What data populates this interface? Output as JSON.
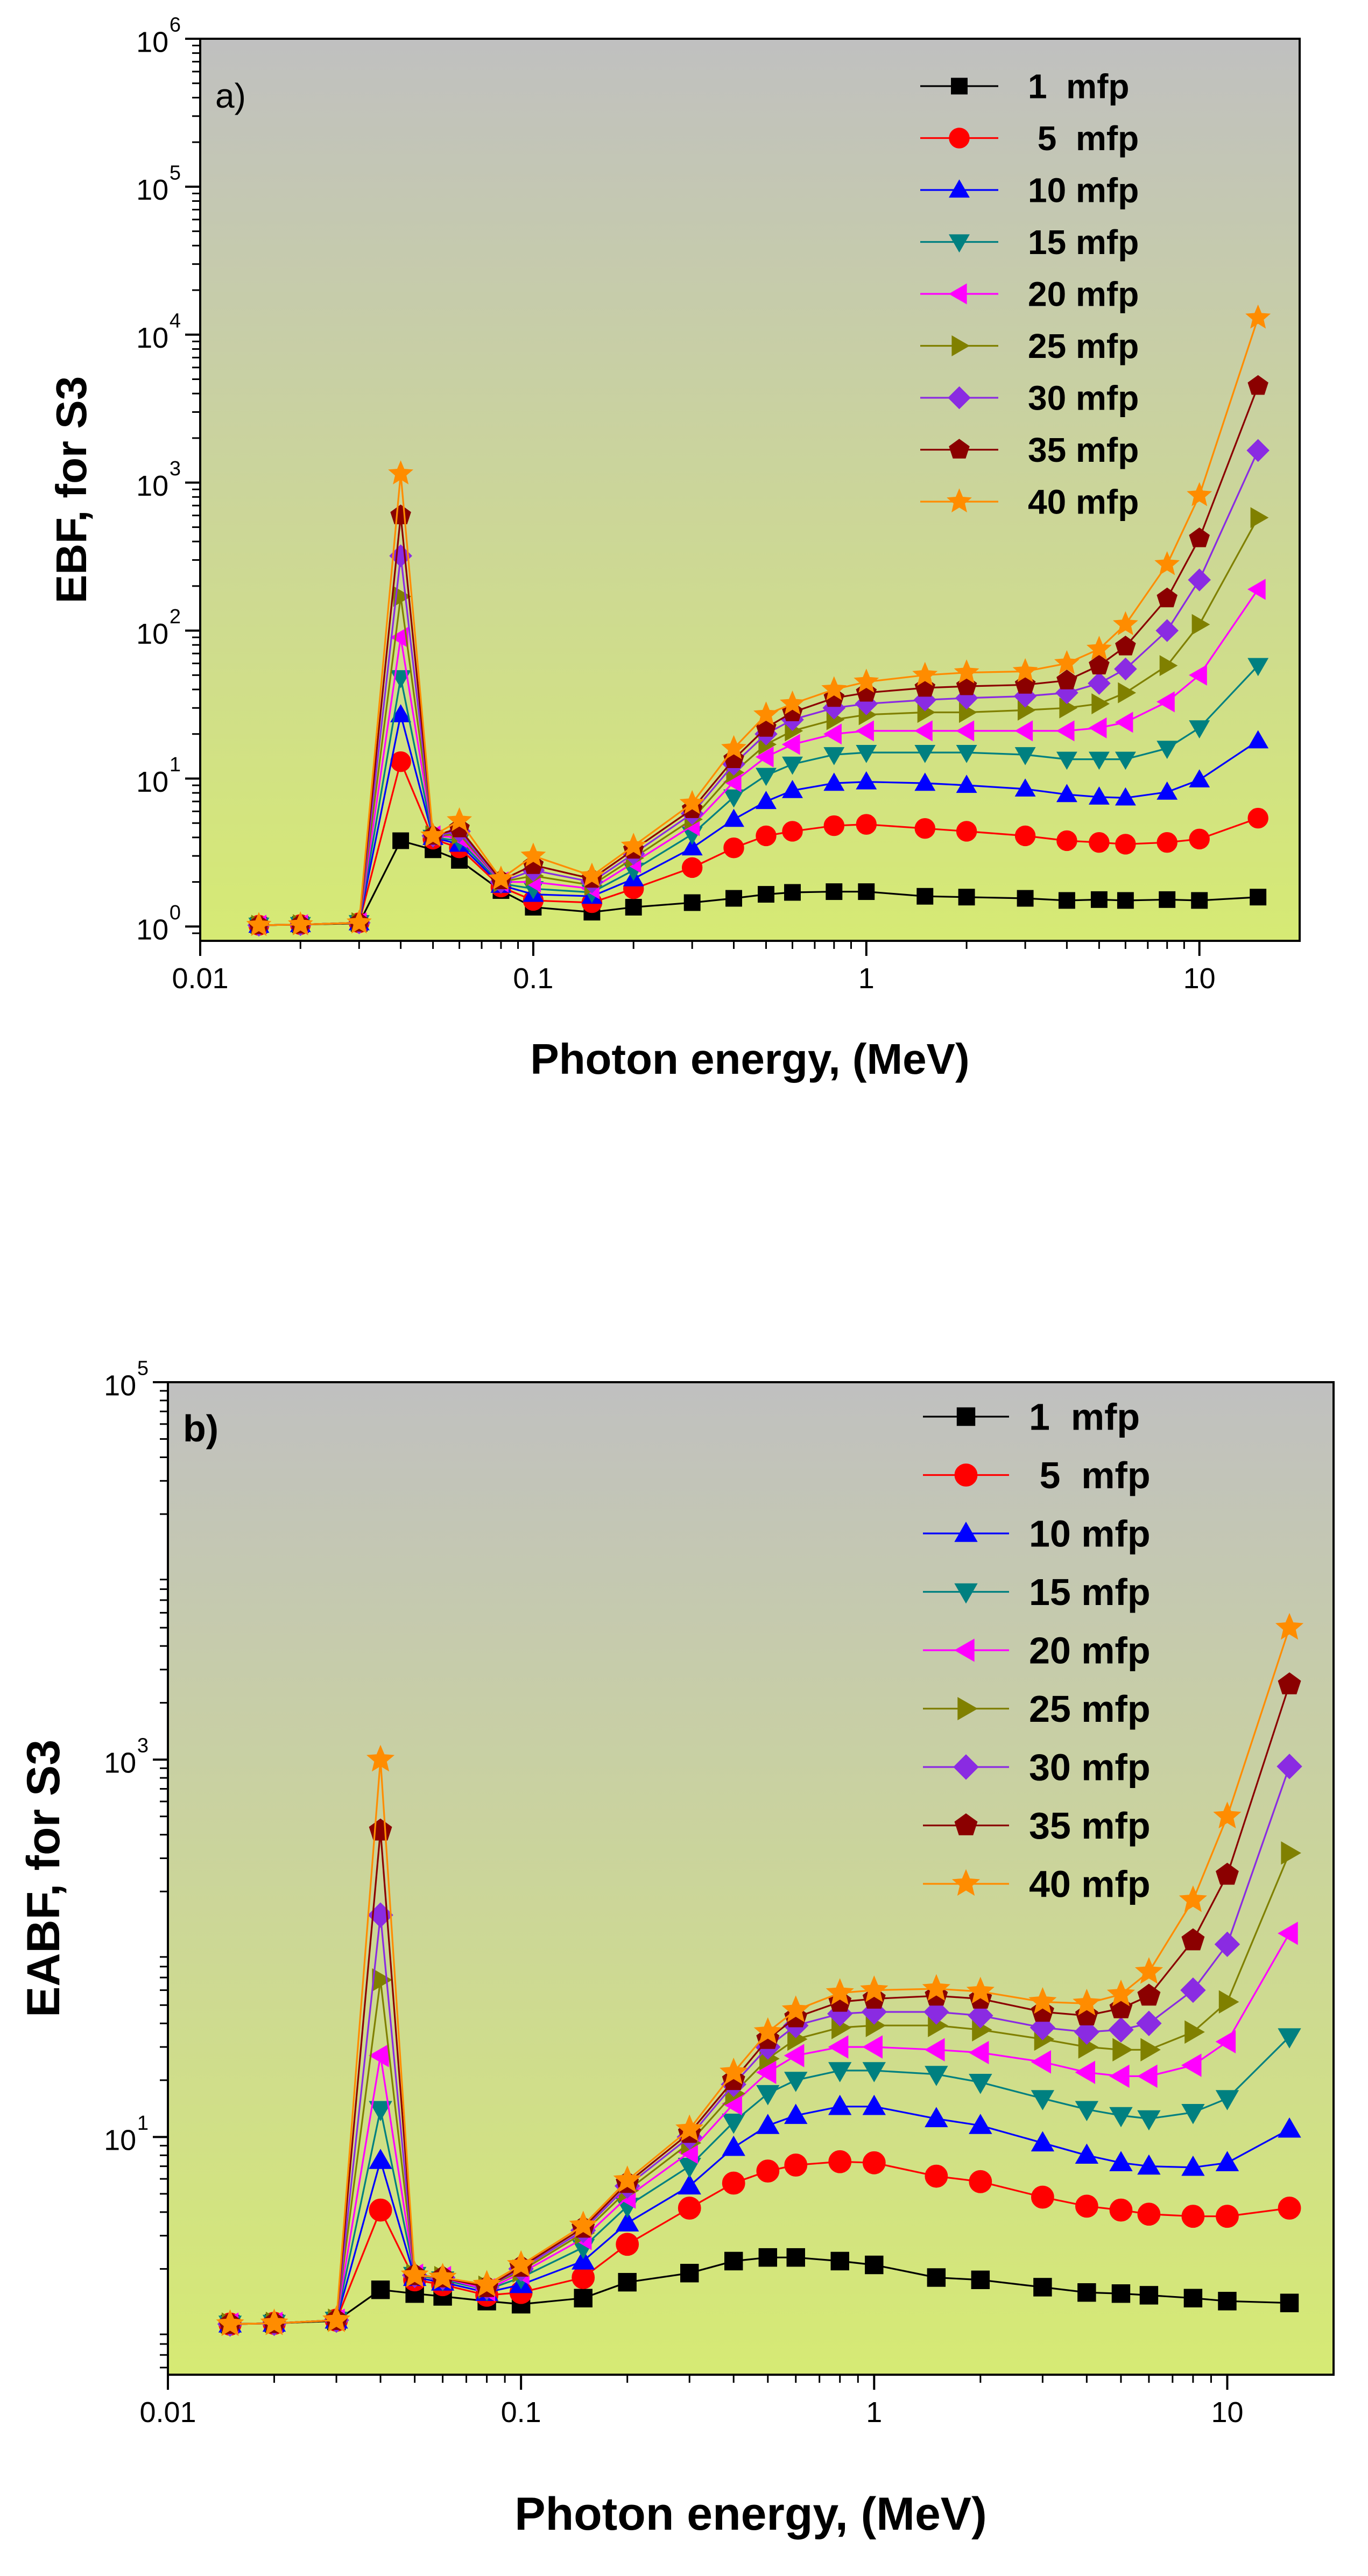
{
  "chart_data": [
    {
      "type": "line",
      "panel_label": "a)",
      "xlabel": "Photon energy, (MeV)",
      "ylabel": "EBF, for S3",
      "xscale": "log",
      "yscale": "log",
      "xlim": [
        0.01,
        20
      ],
      "ylim": [
        0.8,
        1000000
      ],
      "x_ticks": [
        {
          "value": 0.01,
          "label": "0.01"
        },
        {
          "value": 0.1,
          "label": "0.1"
        },
        {
          "value": 1,
          "label": "1"
        },
        {
          "value": 10,
          "label": "10"
        }
      ],
      "y_ticks": [
        {
          "value": 1,
          "base": "10",
          "exp": "0"
        },
        {
          "value": 10,
          "base": "10",
          "exp": "1"
        },
        {
          "value": 100,
          "base": "10",
          "exp": "2"
        },
        {
          "value": 1000,
          "base": "10",
          "exp": "3"
        },
        {
          "value": 10000,
          "base": "10",
          "exp": "4"
        },
        {
          "value": 100000,
          "base": "10",
          "exp": "5"
        },
        {
          "value": 1000000,
          "base": "10",
          "exp": "6"
        }
      ],
      "legend_position": "top-right",
      "x": [
        0.015,
        0.02,
        0.03,
        0.04,
        0.05,
        0.06,
        0.08,
        0.1,
        0.15,
        0.2,
        0.3,
        0.4,
        0.5,
        0.6,
        0.8,
        1,
        1.5,
        2,
        3,
        4,
        5,
        6,
        8,
        10,
        15
      ],
      "series": [
        {
          "name": "1  mfp",
          "color": "#000000",
          "marker": "square",
          "values": [
            1.02,
            1.03,
            1.05,
            3.8,
            3.3,
            2.8,
            1.75,
            1.35,
            1.25,
            1.35,
            1.45,
            1.55,
            1.65,
            1.7,
            1.72,
            1.72,
            1.6,
            1.58,
            1.55,
            1.5,
            1.52,
            1.5,
            1.52,
            1.5,
            1.58
          ]
        },
        {
          "name": " 5  mfp",
          "color": "#ff0000",
          "marker": "circle",
          "values": [
            1.02,
            1.03,
            1.06,
            13,
            3.9,
            3.4,
            1.85,
            1.5,
            1.45,
            1.8,
            2.5,
            3.4,
            4.1,
            4.4,
            4.8,
            4.9,
            4.6,
            4.4,
            4.1,
            3.8,
            3.7,
            3.6,
            3.7,
            3.9,
            5.4
          ]
        },
        {
          "name": "10 mfp",
          "color": "#0000ff",
          "marker": "triangle-up",
          "values": [
            1.02,
            1.03,
            1.06,
            27,
            4.0,
            3.6,
            1.9,
            1.65,
            1.6,
            2.1,
            3.4,
            5.3,
            7.0,
            8.3,
            9.3,
            9.5,
            9.3,
            9.0,
            8.5,
            7.8,
            7.5,
            7.4,
            8.1,
            9.8,
            18
          ]
        },
        {
          "name": "15 mfp",
          "color": "#008080",
          "marker": "triangle-down",
          "values": [
            1.02,
            1.03,
            1.06,
            48,
            4.0,
            3.8,
            1.95,
            1.8,
            1.7,
            2.4,
            4.2,
            7.5,
            10.5,
            12.5,
            14.5,
            15,
            15,
            15,
            14.5,
            13.5,
            13.5,
            13.5,
            16,
            22,
            58
          ]
        },
        {
          "name": "20 mfp",
          "color": "#ff00ff",
          "marker": "triangle-left",
          "values": [
            1.02,
            1.03,
            1.06,
            90,
            4.1,
            4.0,
            2.0,
            2.0,
            1.8,
            2.7,
            4.8,
            9.5,
            14,
            17,
            20,
            21,
            21,
            21,
            21,
            21,
            22,
            24,
            33,
            50,
            190
          ]
        },
        {
          "name": "25 mfp",
          "color": "#808000",
          "marker": "triangle-right",
          "values": [
            1.02,
            1.03,
            1.06,
            170,
            4.1,
            4.2,
            2.0,
            2.2,
            1.9,
            2.9,
            5.3,
            11,
            17,
            21,
            25,
            27,
            28,
            28,
            29,
            30,
            32,
            38,
            58,
            110,
            580
          ]
        },
        {
          "name": "30 mfp",
          "color": "#8a2be2",
          "marker": "diamond",
          "values": [
            1.02,
            1.03,
            1.06,
            320,
            4.1,
            4.4,
            2.0,
            2.4,
            2.0,
            3.1,
            5.8,
            12.5,
            20,
            25,
            30,
            32,
            34,
            35,
            36,
            38,
            44,
            55,
            100,
            220,
            1650
          ]
        },
        {
          "name": "35 mfp",
          "color": "#8b0000",
          "marker": "pentagon",
          "values": [
            1.02,
            1.03,
            1.06,
            600,
            4.1,
            4.6,
            2.05,
            2.6,
            2.1,
            3.3,
            6.2,
            13.5,
            22,
            28,
            35,
            38,
            41,
            42,
            43,
            46,
            58,
            78,
            165,
            420,
            4500
          ]
        },
        {
          "name": "40 mfp",
          "color": "#ff8c00",
          "marker": "star",
          "values": [
            1.02,
            1.03,
            1.06,
            1150,
            4.1,
            5.2,
            2.1,
            3.0,
            2.2,
            3.5,
            6.8,
            16,
            27,
            32,
            40,
            45,
            50,
            52,
            53,
            60,
            75,
            110,
            280,
            820,
            13000
          ]
        }
      ]
    },
    {
      "type": "line",
      "panel_label": "b)",
      "xlabel": "Photon energy, (MeV)",
      "ylabel": "EABF, for S3",
      "xscale": "log",
      "yscale": "log",
      "xlim": [
        0.01,
        20
      ],
      "ylim": [
        0.55,
        100000
      ],
      "x_ticks": [
        {
          "value": 0.01,
          "label": "0.01"
        },
        {
          "value": 0.1,
          "label": "0.1"
        },
        {
          "value": 1,
          "label": "1"
        },
        {
          "value": 10,
          "label": "10"
        }
      ],
      "y_ticks": [
        {
          "value": 10,
          "base": "10",
          "exp": "1"
        },
        {
          "value": 1000,
          "base": "10",
          "exp": "3"
        },
        {
          "value": 100000,
          "base": "10",
          "exp": "5"
        }
      ],
      "legend_position": "top-right",
      "x": [
        0.015,
        0.02,
        0.03,
        0.04,
        0.05,
        0.06,
        0.08,
        0.1,
        0.15,
        0.2,
        0.3,
        0.4,
        0.5,
        0.6,
        0.8,
        1,
        1.5,
        2,
        3,
        4,
        5,
        6,
        8,
        10,
        15
      ],
      "series": [
        {
          "name": "1  mfp",
          "color": "#000000",
          "marker": "square",
          "values": [
            1.02,
            1.03,
            1.06,
            1.55,
            1.48,
            1.43,
            1.35,
            1.3,
            1.4,
            1.7,
            1.9,
            2.2,
            2.3,
            2.3,
            2.2,
            2.1,
            1.8,
            1.75,
            1.6,
            1.5,
            1.48,
            1.45,
            1.4,
            1.35,
            1.32
          ]
        },
        {
          "name": " 5  mfp",
          "color": "#ff0000",
          "marker": "circle",
          "values": [
            1.02,
            1.03,
            1.07,
            4.1,
            1.75,
            1.65,
            1.45,
            1.5,
            1.8,
            2.7,
            4.2,
            5.7,
            6.6,
            7.1,
            7.4,
            7.3,
            6.2,
            5.8,
            4.8,
            4.3,
            4.1,
            3.9,
            3.8,
            3.8,
            4.2
          ]
        },
        {
          "name": "10 mfp",
          "color": "#0000ff",
          "marker": "triangle-up",
          "values": [
            1.02,
            1.03,
            1.07,
            7.5,
            1.8,
            1.7,
            1.5,
            1.65,
            2.2,
            3.5,
            5.5,
            8.8,
            11.5,
            13,
            14.5,
            14.5,
            12.5,
            11.5,
            9.3,
            8.0,
            7.3,
            7.0,
            6.9,
            7.3,
            11
          ]
        },
        {
          "name": "15 mfp",
          "color": "#008080",
          "marker": "triangle-down",
          "values": [
            1.02,
            1.03,
            1.07,
            14,
            1.85,
            1.75,
            1.55,
            1.8,
            2.6,
            4.3,
            7.0,
            12,
            17,
            20,
            22.5,
            22.5,
            21.5,
            19.5,
            16,
            14,
            13,
            12.5,
            13.5,
            16,
            34
          ]
        },
        {
          "name": "20 mfp",
          "color": "#ff00ff",
          "marker": "triangle-left",
          "values": [
            1.02,
            1.03,
            1.07,
            27,
            1.85,
            1.8,
            1.55,
            1.9,
            2.9,
            4.8,
            8.3,
            15,
            22,
            27,
            30,
            30,
            29,
            28,
            25,
            22,
            21,
            21,
            24,
            32,
            120
          ]
        },
        {
          "name": "25 mfp",
          "color": "#808000",
          "marker": "triangle-right",
          "values": [
            1.02,
            1.03,
            1.07,
            68,
            1.85,
            1.8,
            1.6,
            1.95,
            3.1,
            5.2,
            9.3,
            17,
            26,
            33,
            38,
            39,
            39,
            37,
            33,
            30,
            29,
            29,
            36,
            52,
            320
          ]
        },
        {
          "name": "30 mfp",
          "color": "#8a2be2",
          "marker": "diamond",
          "values": [
            1.02,
            1.03,
            1.07,
            150,
            1.85,
            1.8,
            1.6,
            2.0,
            3.2,
            5.5,
            10,
            19,
            30,
            39,
            45,
            46,
            46,
            44,
            38,
            36,
            37,
            40,
            60,
            105,
            920
          ]
        },
        {
          "name": "35 mfp",
          "color": "#8b0000",
          "marker": "pentagon",
          "values": [
            1.02,
            1.03,
            1.07,
            420,
            1.85,
            1.8,
            1.6,
            2.05,
            3.3,
            5.7,
            10.5,
            20,
            33,
            43,
            52,
            54,
            56,
            54,
            46,
            44,
            48,
            56,
            110,
            245,
            2500
          ]
        },
        {
          "name": "40 mfp",
          "color": "#ff8c00",
          "marker": "star",
          "values": [
            1.02,
            1.03,
            1.07,
            1000,
            1.85,
            1.8,
            1.65,
            2.1,
            3.4,
            5.9,
            11,
            22,
            36,
            47,
            58,
            60,
            61,
            59,
            52,
            51,
            57,
            75,
            180,
            500,
            5000
          ]
        }
      ]
    }
  ]
}
